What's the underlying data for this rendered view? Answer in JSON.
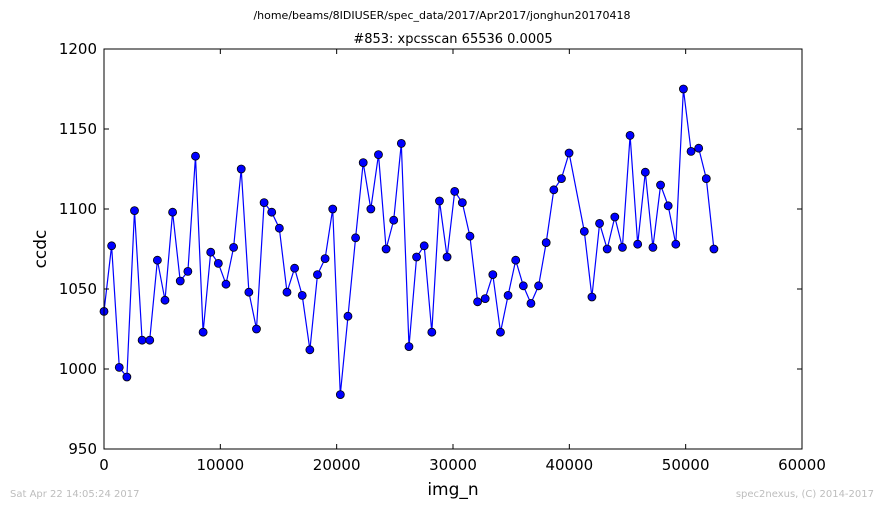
{
  "suptitle": "/home/beams/8IDIUSER/spec_data/2017/Apr2017/jonghun20170418",
  "footer": {
    "timestamp": "Sat Apr 22 14:05:24 2017",
    "credit": "spec2nexus, (C) 2014-2017"
  },
  "colors": {
    "line": "#0000ff",
    "marker": "#0000ff",
    "marker_edge": "#000000",
    "axes": "#000000"
  },
  "chart_data": {
    "type": "line",
    "title": "#853: xpcsscan 65536 0.0005",
    "xlabel": "img_n",
    "ylabel": "ccdc",
    "xlim": [
      0,
      60000
    ],
    "ylim": [
      950,
      1200
    ],
    "xticks": [
      0,
      10000,
      20000,
      30000,
      40000,
      50000,
      60000
    ],
    "yticks": [
      950,
      1000,
      1050,
      1100,
      1150,
      1200
    ],
    "grid": false,
    "markers": true,
    "series": [
      {
        "x": [
          0,
          655,
          1311,
          1966,
          2621,
          3277,
          3932,
          4588,
          5243,
          5898,
          6554,
          7209,
          7864,
          8520,
          9175,
          9830,
          10486,
          11141,
          11796,
          12452,
          13107,
          13762,
          14418,
          15073,
          15729,
          16384,
          17039,
          17695,
          18350,
          19005,
          19661,
          20316,
          20971,
          21627,
          22282,
          22938,
          23593,
          24248,
          24904,
          25559,
          26214,
          26870,
          27525,
          28180,
          28836,
          29491,
          30147,
          30802,
          31457,
          32113,
          32768,
          33423,
          34079,
          34734,
          35389,
          36045,
          36700,
          37356,
          38011,
          38666,
          39322,
          39977,
          41288,
          41943,
          42598,
          43254,
          43909,
          44565,
          45220,
          45875,
          46531,
          47186,
          47841,
          48497,
          49152,
          49807,
          50463,
          51118,
          51773,
          52429
        ],
        "y": [
          1036,
          1077,
          1001,
          995,
          1099,
          1018,
          1018,
          1068,
          1043,
          1098,
          1055,
          1061,
          1133,
          1023,
          1073,
          1066,
          1053,
          1076,
          1125,
          1048,
          1025,
          1104,
          1098,
          1088,
          1048,
          1063,
          1046,
          1012,
          1059,
          1069,
          1100,
          984,
          1033,
          1082,
          1129,
          1100,
          1134,
          1075,
          1093,
          1141,
          1014,
          1070,
          1077,
          1023,
          1105,
          1070,
          1111,
          1104,
          1083,
          1042,
          1044,
          1059,
          1023,
          1046,
          1068,
          1052,
          1041,
          1052,
          1079,
          1112,
          1119,
          1135,
          1086,
          1045,
          1091,
          1075,
          1095,
          1076,
          1146,
          1078,
          1123,
          1076,
          1115,
          1102,
          1078,
          1175,
          1136,
          1138,
          1119,
          1075
        ]
      }
    ]
  }
}
